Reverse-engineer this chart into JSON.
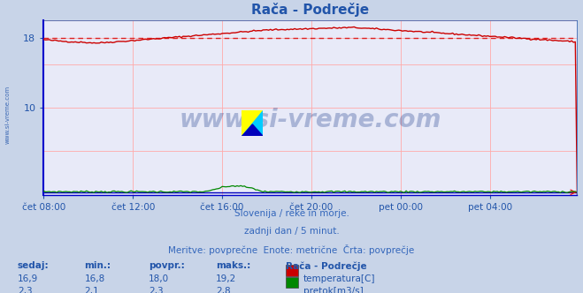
{
  "title": "Rača - Podrečje",
  "bg_color": "#c8d4e8",
  "plot_bg_color": "#e8eaf8",
  "grid_color": "#ffaaaa",
  "x_labels": [
    "čet 08:00",
    "čet 12:00",
    "čet 16:00",
    "čet 20:00",
    "pet 00:00",
    "pet 04:00"
  ],
  "x_ticks_pos": [
    0,
    48,
    96,
    144,
    192,
    240
  ],
  "x_max": 287,
  "y_min": 0,
  "y_max": 20,
  "y_ticks": [
    10,
    18
  ],
  "avg_line_y": 18.0,
  "avg_line_color": "#dd2222",
  "temp_color": "#cc0000",
  "flow_color": "#008800",
  "blue_baseline_color": "#0000bb",
  "watermark_text": "www.si-vreme.com",
  "watermark_color": "#1a3a8a",
  "watermark_alpha": 0.3,
  "footer_line1": "Slovenija / reke in morje.",
  "footer_line2": "zadnji dan / 5 minut.",
  "footer_line3": "Meritve: povprečne  Enote: metrične  Črta: povprečje",
  "footer_color": "#3366bb",
  "table_headers": [
    "sedaj:",
    "min.:",
    "povpr.:",
    "maks.:",
    "Rača - Podrečje"
  ],
  "table_row1_vals": [
    "16,9",
    "16,8",
    "18,0",
    "19,2"
  ],
  "table_row1_label": "temperatura[C]",
  "table_row2_vals": [
    "2,3",
    "2,1",
    "2,3",
    "2,8"
  ],
  "table_row2_label": "pretok[m3/s]",
  "table_color": "#2255aa",
  "temp_marker_color": "#cc0000",
  "flow_marker_color": "#008800",
  "title_color": "#2255aa",
  "axis_color": "#2255aa",
  "left_label": "www.si-vreme.com",
  "left_label_color": "#2255aa",
  "spine_left_color": "#0000cc",
  "spine_bottom_color": "#0000cc"
}
